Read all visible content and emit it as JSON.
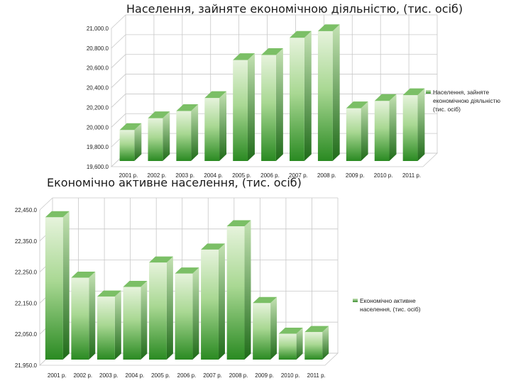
{
  "chart_data": [
    {
      "type": "bar",
      "title": "Населення, зайняте економічною діяльністю, (тис. осіб)",
      "categories": [
        "2001 р.",
        "2002 р.",
        "2003 р.",
        "2004 р.",
        "2005 р.",
        "2006 р.",
        "2007 р.",
        "2008 р.",
        "2009 р.",
        "2010 р.",
        "2011 р."
      ],
      "series": [
        {
          "name": "Населення, зайняте економічною діяльністю (тис. осіб)",
          "values": [
            19971.5,
            20091.1,
            20163.3,
            20295.7,
            20680.0,
            20730.4,
            20904.7,
            20972.3,
            20191.5,
            20266.0,
            20324.2
          ]
        }
      ],
      "y_ticks": [
        "19,600.0",
        "19,800.0",
        "20,000.0",
        "20,200.0",
        "20,400.0",
        "20,600.0",
        "20,800.0",
        "21,000.0"
      ],
      "ylim": [
        19600,
        21000
      ],
      "grid": true,
      "legend_position": "right"
    },
    {
      "type": "bar",
      "title": "Економічно активне населення, (тис. осіб)",
      "categories": [
        "2001 р.",
        "2002 р.",
        "2003 р.",
        "2004 р.",
        "2005 р.",
        "2006 р.",
        "2007 р.",
        "2008 р.",
        "2009 р.",
        "2010 р.",
        "2011 р."
      ],
      "series": [
        {
          "name": "Економічно активне населення, (тис. осіб)",
          "values": [
            22426.5,
            22231.9,
            22171.3,
            22202.4,
            22280.8,
            22245.4,
            22322.3,
            22397.4,
            22150.3,
            22051.6,
            22056.9
          ]
        }
      ],
      "y_ticks": [
        "21,950.0",
        "22,050.0",
        "22,150.0",
        "22,250.0",
        "22,350.0",
        "22,450.0"
      ],
      "ylim": [
        21950,
        22450
      ],
      "grid": true,
      "legend_position": "right"
    }
  ],
  "colors": {
    "bar_light": "#d6ecc8",
    "bar_mid": "#7cc06a",
    "bar_dark": "#2f8a25",
    "grid": "#bdbdbd"
  }
}
